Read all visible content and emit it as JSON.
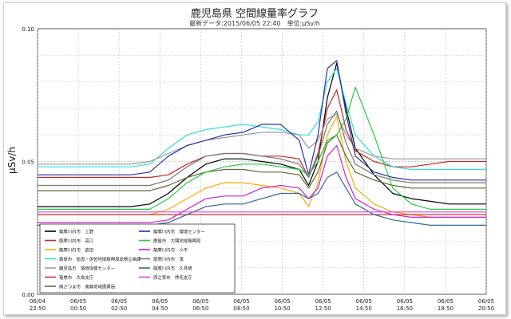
{
  "chart_data": {
    "type": "line",
    "title": "鹿児島県 空間線量率グラフ",
    "subtitle": "最新データ:2015/06/05 22:40　単位:μSv/h",
    "ylabel": "μSv/h",
    "xlabel": "",
    "ylim": [
      0,
      0.1
    ],
    "yticks": [
      "0.00",
      "0.05",
      "0.10"
    ],
    "grid": true,
    "legend_position": "bottom-left",
    "xticks": [
      {
        "date": "06/04",
        "time": "22:50"
      },
      {
        "date": "06/05",
        "time": "00:50"
      },
      {
        "date": "06/05",
        "time": "02:50"
      },
      {
        "date": "06/05",
        "time": "04:50"
      },
      {
        "date": "06/05",
        "time": "06:50"
      },
      {
        "date": "06/05",
        "time": "08:50"
      },
      {
        "date": "06/05",
        "time": "10:50"
      },
      {
        "date": "06/05",
        "time": "12:50"
      },
      {
        "date": "06/05",
        "time": "14:50"
      },
      {
        "date": "06/05",
        "time": "16:50"
      },
      {
        "date": "06/05",
        "time": "18:50"
      },
      {
        "date": "06/05",
        "time": "20:50"
      }
    ],
    "x_hours": [
      0,
      1,
      2,
      3,
      4,
      5,
      6,
      7,
      8,
      9,
      10,
      11,
      12,
      13,
      14,
      14.5,
      15,
      15.5,
      16,
      16.5,
      17,
      18,
      19,
      20,
      21,
      22,
      23,
      24
    ],
    "series": [
      {
        "name": "薩摩川内市　上野",
        "color": "#000000",
        "values": [
          0.033,
          0.033,
          0.033,
          0.033,
          0.033,
          0.033,
          0.034,
          0.038,
          0.044,
          0.049,
          0.051,
          0.051,
          0.05,
          0.049,
          0.047,
          0.041,
          0.05,
          0.074,
          0.087,
          0.07,
          0.055,
          0.045,
          0.038,
          0.036,
          0.035,
          0.034,
          0.034,
          0.034
        ]
      },
      {
        "name": "薩摩川内市　高江",
        "color": "#cc2222",
        "values": [
          0.044,
          0.044,
          0.044,
          0.044,
          0.044,
          0.044,
          0.044,
          0.045,
          0.049,
          0.052,
          0.053,
          0.053,
          0.052,
          0.052,
          0.051,
          0.044,
          0.053,
          0.07,
          0.077,
          0.062,
          0.054,
          0.05,
          0.048,
          0.048,
          0.049,
          0.05,
          0.05,
          0.05
        ]
      },
      {
        "name": "薩摩川内市　倉田",
        "color": "#ffaa00",
        "values": [
          0.03,
          0.03,
          0.03,
          0.03,
          0.03,
          0.03,
          0.03,
          0.032,
          0.036,
          0.04,
          0.042,
          0.042,
          0.041,
          0.04,
          0.038,
          0.033,
          0.042,
          0.06,
          0.067,
          0.05,
          0.04,
          0.034,
          0.031,
          0.03,
          0.029,
          0.029,
          0.029,
          0.029
        ]
      },
      {
        "name": "霧島市　姶良・伊佐地域振興局総務企画課",
        "color": "#33dddd",
        "values": [
          0.048,
          0.048,
          0.048,
          0.048,
          0.048,
          0.048,
          0.049,
          0.055,
          0.06,
          0.062,
          0.063,
          0.064,
          0.063,
          0.062,
          0.06,
          0.06,
          0.065,
          0.08,
          0.085,
          0.072,
          0.06,
          0.052,
          0.048,
          0.047,
          0.047,
          0.047,
          0.047,
          0.047
        ]
      },
      {
        "name": "鹿児島市　環境保健センター",
        "color": "#999999",
        "values": [
          0.049,
          0.049,
          0.049,
          0.049,
          0.049,
          0.049,
          0.05,
          0.053,
          0.056,
          0.058,
          0.059,
          0.06,
          0.061,
          0.061,
          0.06,
          0.055,
          0.058,
          0.066,
          0.068,
          0.06,
          0.055,
          0.052,
          0.051,
          0.051,
          0.051,
          0.051,
          0.051,
          0.051
        ]
      },
      {
        "name": "奄美市　大島支庁",
        "color": "#cc3333",
        "values": [
          0.03,
          0.03,
          0.03,
          0.03,
          0.03,
          0.03,
          0.03,
          0.03,
          0.03,
          0.03,
          0.03,
          0.03,
          0.03,
          0.03,
          0.03,
          0.03,
          0.03,
          0.03,
          0.03,
          0.03,
          0.03,
          0.03,
          0.03,
          0.03,
          0.03,
          0.03,
          0.03,
          0.03
        ]
      },
      {
        "name": "南さつま市　南薩地域振興局",
        "color": "#666633",
        "values": [
          0.039,
          0.039,
          0.039,
          0.039,
          0.039,
          0.039,
          0.039,
          0.041,
          0.044,
          0.046,
          0.047,
          0.047,
          0.046,
          0.046,
          0.045,
          0.04,
          0.046,
          0.057,
          0.06,
          0.052,
          0.046,
          0.043,
          0.041,
          0.04,
          0.04,
          0.04,
          0.04,
          0.04
        ]
      },
      {
        "name": "薩摩川内市　環境センター",
        "color": "#2233aa",
        "values": [
          0.045,
          0.045,
          0.045,
          0.045,
          0.045,
          0.045,
          0.046,
          0.052,
          0.056,
          0.058,
          0.06,
          0.061,
          0.064,
          0.064,
          0.058,
          0.045,
          0.06,
          0.085,
          0.088,
          0.068,
          0.052,
          0.046,
          0.044,
          0.043,
          0.043,
          0.043,
          0.043,
          0.043
        ]
      },
      {
        "name": "鹿屋市　大隅地域振興局",
        "color": "#22cc44",
        "values": [
          0.032,
          0.032,
          0.032,
          0.032,
          0.032,
          0.032,
          0.032,
          0.036,
          0.042,
          0.046,
          0.048,
          0.049,
          0.049,
          0.048,
          0.047,
          0.045,
          0.05,
          0.058,
          0.06,
          0.066,
          0.078,
          0.06,
          0.04,
          0.034,
          0.032,
          0.032,
          0.032,
          0.032
        ]
      },
      {
        "name": "薩摩川内市　小平",
        "color": "#cc22cc",
        "values": [
          0.027,
          0.027,
          0.027,
          0.027,
          0.027,
          0.027,
          0.027,
          0.028,
          0.032,
          0.036,
          0.037,
          0.037,
          0.04,
          0.041,
          0.04,
          0.036,
          0.04,
          0.052,
          0.056,
          0.044,
          0.036,
          0.032,
          0.03,
          0.029,
          0.029,
          0.029,
          0.029,
          0.029
        ]
      },
      {
        "name": "薩摩川内市　滝",
        "color": "#777777",
        "values": [
          0.041,
          0.041,
          0.041,
          0.041,
          0.041,
          0.041,
          0.041,
          0.043,
          0.048,
          0.052,
          0.053,
          0.053,
          0.052,
          0.051,
          0.049,
          0.044,
          0.052,
          0.064,
          0.069,
          0.057,
          0.049,
          0.045,
          0.043,
          0.042,
          0.042,
          0.042,
          0.042,
          0.042
        ]
      },
      {
        "name": "薩摩川内市　久見崎",
        "color": "#336699",
        "values": [
          0.026,
          0.026,
          0.026,
          0.026,
          0.026,
          0.026,
          0.026,
          0.027,
          0.03,
          0.033,
          0.034,
          0.034,
          0.036,
          0.038,
          0.038,
          0.036,
          0.038,
          0.044,
          0.046,
          0.04,
          0.034,
          0.03,
          0.028,
          0.027,
          0.026,
          0.026,
          0.026,
          0.026
        ]
      },
      {
        "name": "西之表市　熊毛支庁",
        "color": "#dd44dd",
        "values": [
          0.031,
          0.031,
          0.031,
          0.031,
          0.031,
          0.031,
          0.031,
          0.031,
          0.031,
          0.031,
          0.031,
          0.031,
          0.031,
          0.031,
          0.031,
          0.031,
          0.031,
          0.031,
          0.031,
          0.031,
          0.031,
          0.031,
          0.031,
          0.031,
          0.031,
          0.031,
          0.031,
          0.031
        ]
      }
    ]
  }
}
